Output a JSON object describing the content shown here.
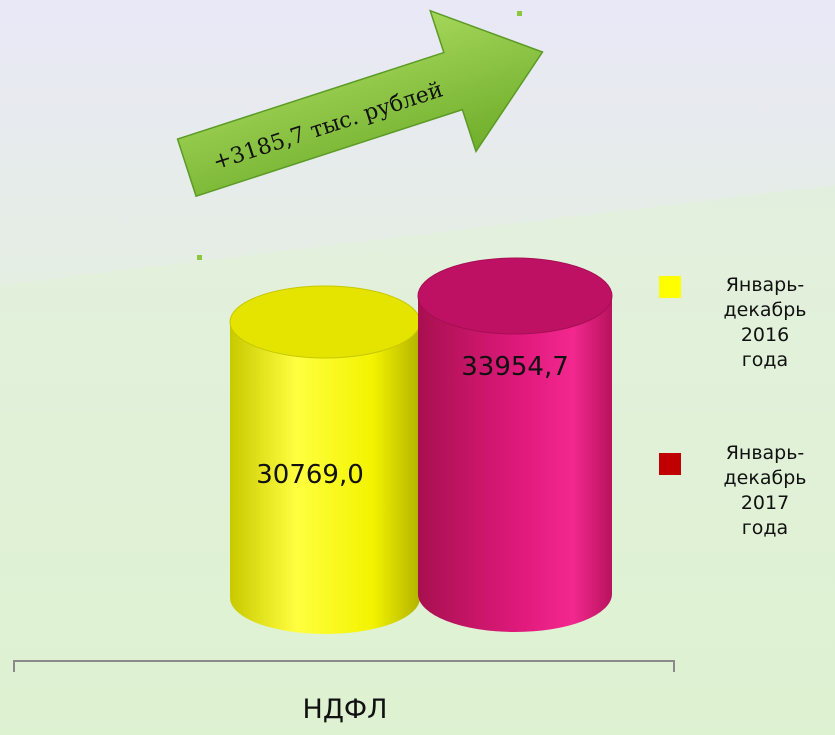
{
  "chart_data": {
    "type": "bar",
    "categories": [
      "НДФЛ"
    ],
    "series": [
      {
        "name": "Январь-\nдекабрь\n2016\nгода",
        "values": [
          30769.0
        ],
        "label": "30769,0",
        "color": "#f5f500"
      },
      {
        "name": "Январь-\nдекабрь\n2017\nгода",
        "values": [
          33954.7
        ],
        "label": "33954,7",
        "color": "#e0157a"
      }
    ],
    "legend_colors": [
      "#ffff00",
      "#c00000"
    ],
    "legend_position": "right",
    "annotation": "+3185,7 тыс. рублей",
    "arrow_color": "#8cc63f"
  }
}
